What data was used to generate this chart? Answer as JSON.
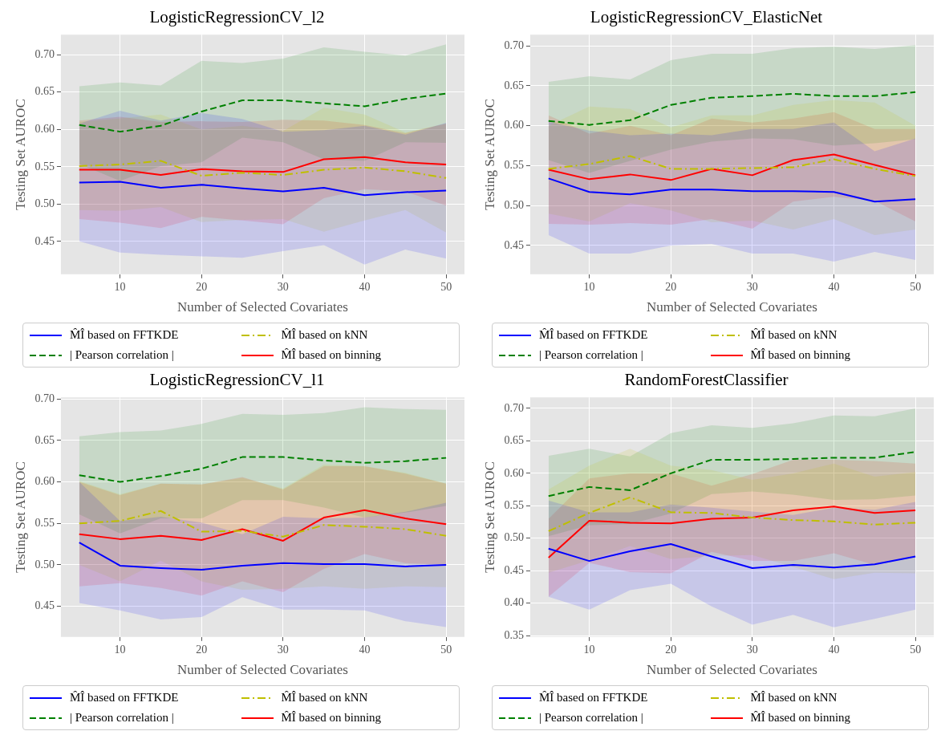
{
  "chart_data": [
    {
      "type": "line",
      "title": "LogisticRegressionCV_l2",
      "xlabel": "Number of Selected Covariates",
      "ylabel": "Testing Set AUROC",
      "x": [
        5,
        10,
        15,
        20,
        25,
        30,
        35,
        40,
        45,
        50
      ],
      "xlim": [
        2.75,
        52.25
      ],
      "xticks": [
        10,
        20,
        30,
        40,
        50
      ],
      "ylim": [
        0.406,
        0.727
      ],
      "yticks": [
        {
          "value": 0.45,
          "label": "0.45"
        },
        {
          "value": 0.5,
          "label": "0.50"
        },
        {
          "value": 0.55,
          "label": "0.55"
        },
        {
          "value": 0.6,
          "label": "0.60"
        },
        {
          "value": 0.65,
          "label": "0.65"
        },
        {
          "value": 0.7,
          "label": "0.70"
        }
      ],
      "grid": true,
      "legend": "bottom",
      "series": [
        {
          "name": "M̂Î based on FFTKDE",
          "color": "#0000ff",
          "line_style": "solid",
          "values": [
            0.529,
            0.53,
            0.522,
            0.526,
            0.521,
            0.517,
            0.522,
            0.512,
            0.516,
            0.518
          ],
          "lower": [
            0.45,
            0.435,
            0.432,
            0.43,
            0.428,
            0.437,
            0.445,
            0.419,
            0.439,
            0.427
          ],
          "upper": [
            0.608,
            0.625,
            0.612,
            0.622,
            0.614,
            0.597,
            0.599,
            0.605,
            0.593,
            0.609
          ]
        },
        {
          "name": "M̂Î based on kNN",
          "color": "#bfbf00",
          "line_style": "dashdot",
          "values": [
            0.551,
            0.553,
            0.558,
            0.538,
            0.542,
            0.539,
            0.546,
            0.549,
            0.544,
            0.535
          ],
          "lower": [
            0.492,
            0.491,
            0.496,
            0.476,
            0.479,
            0.48,
            0.463,
            0.478,
            0.492,
            0.462
          ],
          "upper": [
            0.61,
            0.615,
            0.62,
            0.6,
            0.605,
            0.598,
            0.629,
            0.62,
            0.596,
            0.608
          ]
        },
        {
          "name": "| Pearson correlation |",
          "color": "#008000",
          "line_style": "dashed",
          "values": [
            0.606,
            0.597,
            0.605,
            0.624,
            0.639,
            0.639,
            0.635,
            0.631,
            0.641,
            0.648
          ],
          "lower": [
            0.554,
            0.531,
            0.551,
            0.556,
            0.589,
            0.583,
            0.56,
            0.558,
            0.583,
            0.582
          ],
          "upper": [
            0.658,
            0.663,
            0.659,
            0.692,
            0.689,
            0.695,
            0.71,
            0.704,
            0.699,
            0.714
          ]
        },
        {
          "name": "M̂Î based on binning",
          "color": "#ff0000",
          "line_style": "solid",
          "values": [
            0.546,
            0.546,
            0.539,
            0.547,
            0.544,
            0.543,
            0.56,
            0.563,
            0.556,
            0.553
          ],
          "lower": [
            0.48,
            0.475,
            0.468,
            0.483,
            0.478,
            0.473,
            0.508,
            0.52,
            0.517,
            0.498
          ],
          "upper": [
            0.612,
            0.617,
            0.61,
            0.611,
            0.61,
            0.613,
            0.612,
            0.606,
            0.595,
            0.608
          ]
        }
      ]
    },
    {
      "type": "line",
      "title": "LogisticRegressionCV_ElasticNet",
      "xlabel": "Number of Selected Covariates",
      "ylabel": "Testing Set AUROC",
      "x": [
        5,
        10,
        15,
        20,
        25,
        30,
        35,
        40,
        45,
        50
      ],
      "xlim": [
        2.75,
        52.25
      ],
      "xticks": [
        10,
        20,
        30,
        40,
        50
      ],
      "ylim": [
        0.414,
        0.714
      ],
      "yticks": [
        {
          "value": 0.45,
          "label": "0.45"
        },
        {
          "value": 0.5,
          "label": "0.50"
        },
        {
          "value": 0.55,
          "label": "0.55"
        },
        {
          "value": 0.6,
          "label": "0.60"
        },
        {
          "value": 0.65,
          "label": "0.65"
        },
        {
          "value": 0.7,
          "label": "0.70"
        }
      ],
      "grid": true,
      "legend": "bottom",
      "series": [
        {
          "name": "M̂Î based on FFTKDE",
          "color": "#0000ff",
          "line_style": "solid",
          "values": [
            0.534,
            0.517,
            0.514,
            0.52,
            0.52,
            0.518,
            0.518,
            0.517,
            0.505,
            0.508
          ],
          "lower": [
            0.463,
            0.44,
            0.44,
            0.45,
            0.452,
            0.44,
            0.44,
            0.43,
            0.442,
            0.432
          ],
          "upper": [
            0.605,
            0.594,
            0.588,
            0.59,
            0.588,
            0.596,
            0.596,
            0.604,
            0.568,
            0.584
          ]
        },
        {
          "name": "M̂Î based on kNN",
          "color": "#bfbf00",
          "line_style": "dashdot",
          "values": [
            0.546,
            0.552,
            0.562,
            0.546,
            0.546,
            0.547,
            0.548,
            0.558,
            0.546,
            0.537
          ],
          "lower": [
            0.49,
            0.48,
            0.503,
            0.494,
            0.479,
            0.481,
            0.47,
            0.483,
            0.463,
            0.47
          ],
          "upper": [
            0.6,
            0.624,
            0.621,
            0.598,
            0.613,
            0.613,
            0.626,
            0.632,
            0.629,
            0.6
          ]
        },
        {
          "name": "| Pearson correlation |",
          "color": "#008000",
          "line_style": "dashed",
          "values": [
            0.606,
            0.601,
            0.607,
            0.626,
            0.635,
            0.637,
            0.64,
            0.637,
            0.637,
            0.642
          ],
          "lower": [
            0.557,
            0.541,
            0.556,
            0.57,
            0.58,
            0.584,
            0.583,
            0.575,
            0.578,
            0.583
          ],
          "upper": [
            0.655,
            0.662,
            0.658,
            0.682,
            0.69,
            0.69,
            0.697,
            0.699,
            0.696,
            0.701
          ]
        },
        {
          "name": "M̂Î based on binning",
          "color": "#ff0000",
          "line_style": "solid",
          "values": [
            0.545,
            0.533,
            0.539,
            0.532,
            0.546,
            0.538,
            0.557,
            0.564,
            0.551,
            0.538
          ],
          "lower": [
            0.477,
            0.476,
            0.478,
            0.476,
            0.483,
            0.471,
            0.505,
            0.511,
            0.506,
            0.48
          ],
          "upper": [
            0.613,
            0.59,
            0.6,
            0.588,
            0.609,
            0.604,
            0.609,
            0.617,
            0.596,
            0.596
          ]
        }
      ]
    },
    {
      "type": "line",
      "title": "LogisticRegressionCV_l1",
      "xlabel": "Number of Selected Covariates",
      "ylabel": "Testing Set AUROC",
      "x": [
        5,
        10,
        15,
        20,
        25,
        30,
        35,
        40,
        45,
        50
      ],
      "xlim": [
        2.75,
        52.25
      ],
      "xticks": [
        10,
        20,
        30,
        40,
        50
      ],
      "ylim": [
        0.413,
        0.702
      ],
      "yticks": [
        {
          "value": 0.45,
          "label": "0.45"
        },
        {
          "value": 0.5,
          "label": "0.50"
        },
        {
          "value": 0.55,
          "label": "0.55"
        },
        {
          "value": 0.6,
          "label": "0.60"
        },
        {
          "value": 0.65,
          "label": "0.65"
        },
        {
          "value": 0.7,
          "label": "0.70"
        }
      ],
      "grid": true,
      "legend": "bottom",
      "series": [
        {
          "name": "M̂Î based on FFTKDE",
          "color": "#0000ff",
          "line_style": "solid",
          "values": [
            0.527,
            0.499,
            0.496,
            0.494,
            0.499,
            0.502,
            0.501,
            0.501,
            0.498,
            0.5
          ],
          "lower": [
            0.454,
            0.445,
            0.434,
            0.437,
            0.461,
            0.446,
            0.446,
            0.445,
            0.432,
            0.425
          ],
          "upper": [
            0.6,
            0.553,
            0.558,
            0.551,
            0.537,
            0.558,
            0.556,
            0.557,
            0.564,
            0.575
          ]
        },
        {
          "name": "M̂Î based on kNN",
          "color": "#bfbf00",
          "line_style": "dashdot",
          "values": [
            0.55,
            0.553,
            0.565,
            0.54,
            0.541,
            0.534,
            0.548,
            0.546,
            0.543,
            0.535
          ],
          "lower": [
            0.5,
            0.48,
            0.505,
            0.48,
            0.47,
            0.471,
            0.474,
            0.471,
            0.474,
            0.473
          ],
          "upper": [
            0.601,
            0.585,
            0.598,
            0.597,
            0.605,
            0.592,
            0.621,
            0.619,
            0.611,
            0.598
          ]
        },
        {
          "name": "| Pearson correlation |",
          "color": "#008000",
          "line_style": "dashed",
          "values": [
            0.608,
            0.6,
            0.607,
            0.616,
            0.63,
            0.63,
            0.626,
            0.623,
            0.625,
            0.629
          ],
          "lower": [
            0.561,
            0.538,
            0.556,
            0.556,
            0.578,
            0.578,
            0.569,
            0.557,
            0.563,
            0.571
          ],
          "upper": [
            0.655,
            0.66,
            0.662,
            0.67,
            0.682,
            0.681,
            0.683,
            0.69,
            0.688,
            0.687
          ]
        },
        {
          "name": "M̂Î based on binning",
          "color": "#ff0000",
          "line_style": "solid",
          "values": [
            0.537,
            0.531,
            0.535,
            0.53,
            0.543,
            0.529,
            0.557,
            0.566,
            0.556,
            0.549
          ],
          "lower": [
            0.474,
            0.478,
            0.472,
            0.463,
            0.48,
            0.467,
            0.495,
            0.513,
            0.502,
            0.5
          ],
          "upper": [
            0.6,
            0.584,
            0.598,
            0.597,
            0.606,
            0.591,
            0.619,
            0.619,
            0.61,
            0.598
          ]
        }
      ]
    },
    {
      "type": "line",
      "title": "RandomForestClassifier",
      "xlabel": "Number of Selected Covariates",
      "ylabel": "Testing Set AUROC",
      "x": [
        5,
        10,
        15,
        20,
        25,
        30,
        35,
        40,
        45,
        50
      ],
      "xlim": [
        2.75,
        52.25
      ],
      "xticks": [
        10,
        20,
        30,
        40,
        50
      ],
      "ylim": [
        0.348,
        0.717
      ],
      "yticks": [
        {
          "value": 0.35,
          "label": "0.35"
        },
        {
          "value": 0.4,
          "label": "0.40"
        },
        {
          "value": 0.45,
          "label": "0.45"
        },
        {
          "value": 0.5,
          "label": "0.50"
        },
        {
          "value": 0.55,
          "label": "0.55"
        },
        {
          "value": 0.6,
          "label": "0.60"
        },
        {
          "value": 0.65,
          "label": "0.65"
        },
        {
          "value": 0.7,
          "label": "0.70"
        }
      ],
      "grid": true,
      "legend": "bottom",
      "series": [
        {
          "name": "M̂Î based on FFTKDE",
          "color": "#0000ff",
          "line_style": "solid",
          "values": [
            0.484,
            0.465,
            0.48,
            0.491,
            0.472,
            0.454,
            0.459,
            0.455,
            0.46,
            0.472
          ],
          "lower": [
            0.41,
            0.39,
            0.42,
            0.43,
            0.395,
            0.367,
            0.382,
            0.363,
            0.376,
            0.39
          ],
          "upper": [
            0.558,
            0.54,
            0.54,
            0.552,
            0.547,
            0.541,
            0.536,
            0.547,
            0.544,
            0.556
          ]
        },
        {
          "name": "M̂Î based on kNN",
          "color": "#bfbf00",
          "line_style": "dashdot",
          "values": [
            0.511,
            0.539,
            0.563,
            0.54,
            0.539,
            0.532,
            0.528,
            0.526,
            0.521,
            0.524
          ],
          "lower": [
            0.447,
            0.466,
            0.488,
            0.468,
            0.473,
            0.474,
            0.456,
            0.437,
            0.447,
            0.446
          ],
          "upper": [
            0.575,
            0.612,
            0.638,
            0.612,
            0.605,
            0.59,
            0.6,
            0.615,
            0.595,
            0.602
          ]
        },
        {
          "name": "| Pearson correlation |",
          "color": "#008000",
          "line_style": "dashed",
          "values": [
            0.565,
            0.579,
            0.574,
            0.6,
            0.621,
            0.621,
            0.622,
            0.624,
            0.624,
            0.633
          ],
          "lower": [
            0.503,
            0.52,
            0.522,
            0.538,
            0.568,
            0.572,
            0.567,
            0.559,
            0.56,
            0.566
          ],
          "upper": [
            0.627,
            0.638,
            0.626,
            0.662,
            0.674,
            0.67,
            0.677,
            0.689,
            0.688,
            0.7
          ]
        },
        {
          "name": "M̂Î based on binning",
          "color": "#ff0000",
          "line_style": "solid",
          "values": [
            0.47,
            0.527,
            0.524,
            0.523,
            0.53,
            0.532,
            0.543,
            0.549,
            0.539,
            0.543
          ],
          "lower": [
            0.41,
            0.462,
            0.448,
            0.446,
            0.479,
            0.465,
            0.465,
            0.477,
            0.459,
            0.471
          ],
          "upper": [
            0.53,
            0.592,
            0.6,
            0.6,
            0.581,
            0.599,
            0.621,
            0.621,
            0.619,
            0.615
          ]
        }
      ]
    }
  ]
}
